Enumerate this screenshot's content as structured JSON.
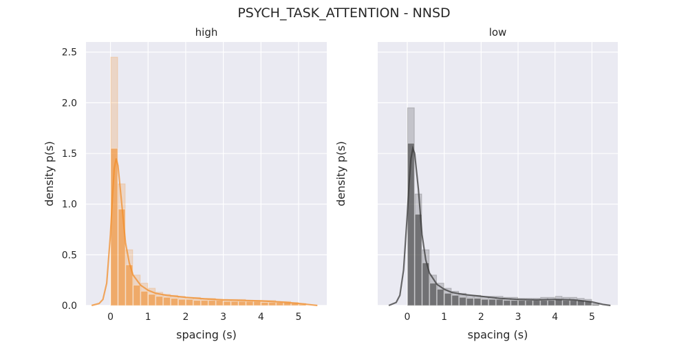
{
  "figure": {
    "title": "PSYCH_TASK_ATTENTION - NNSD"
  },
  "chart_data": [
    {
      "type": "histogram",
      "title": "high",
      "xlabel": "spacing (s)",
      "ylabel": "density p(s)",
      "xlim": [
        -0.65,
        5.75
      ],
      "ylim": [
        0,
        2.6
      ],
      "xticks": [
        "0",
        "1",
        "2",
        "3",
        "4",
        "5"
      ],
      "yticks": [
        "0.0",
        "0.5",
        "1.0",
        "1.5",
        "2.0",
        "2.5"
      ],
      "grid": true,
      "color": "#f28e2b",
      "bin_width": 0.2,
      "bin_starts": [
        0.0,
        0.2,
        0.4,
        0.6,
        0.8,
        1.0,
        1.2,
        1.4,
        1.6,
        1.8,
        2.0,
        2.2,
        2.4,
        2.6,
        2.8,
        3.0,
        3.2,
        3.4,
        3.6,
        3.8,
        4.0,
        4.2,
        4.4,
        4.6,
        4.8,
        5.0
      ],
      "density_max": [
        2.45,
        1.2,
        0.55,
        0.3,
        0.22,
        0.17,
        0.13,
        0.11,
        0.1,
        0.09,
        0.08,
        0.08,
        0.07,
        0.07,
        0.06,
        0.06,
        0.06,
        0.06,
        0.05,
        0.05,
        0.05,
        0.05,
        0.04,
        0.04,
        0.03,
        0.02
      ],
      "density_typical": [
        1.55,
        0.95,
        0.4,
        0.2,
        0.14,
        0.11,
        0.09,
        0.08,
        0.07,
        0.06,
        0.06,
        0.05,
        0.05,
        0.05,
        0.05,
        0.04,
        0.04,
        0.04,
        0.04,
        0.04,
        0.03,
        0.03,
        0.03,
        0.03,
        0.02,
        0.01
      ],
      "kde_x": [
        -0.5,
        -0.3,
        -0.2,
        -0.1,
        0.0,
        0.05,
        0.1,
        0.15,
        0.2,
        0.3,
        0.4,
        0.5,
        0.6,
        0.8,
        1.0,
        1.2,
        1.5,
        2.0,
        2.5,
        3.0,
        3.5,
        4.0,
        4.5,
        5.0,
        5.3,
        5.5
      ],
      "kde_y": [
        0.0,
        0.02,
        0.06,
        0.22,
        0.7,
        1.05,
        1.35,
        1.45,
        1.38,
        1.0,
        0.62,
        0.42,
        0.3,
        0.2,
        0.15,
        0.12,
        0.1,
        0.08,
        0.065,
        0.055,
        0.05,
        0.045,
        0.035,
        0.02,
        0.008,
        0.0
      ]
    },
    {
      "type": "histogram",
      "title": "low",
      "xlabel": "spacing (s)",
      "ylabel": "density p(s)",
      "xlim": [
        -0.8,
        5.7
      ],
      "ylim": [
        0,
        2.6
      ],
      "xticks": [
        "0",
        "1",
        "2",
        "3",
        "4",
        "5"
      ],
      "yticks": [],
      "grid": true,
      "color": "#3a3a3a",
      "bin_width": 0.2,
      "bin_starts": [
        0.0,
        0.2,
        0.4,
        0.6,
        0.8,
        1.0,
        1.2,
        1.4,
        1.6,
        1.8,
        2.0,
        2.2,
        2.4,
        2.6,
        2.8,
        3.0,
        3.2,
        3.4,
        3.6,
        3.8,
        4.0,
        4.2,
        4.4,
        4.6,
        4.8,
        5.0
      ],
      "density_max": [
        1.95,
        1.1,
        0.55,
        0.3,
        0.22,
        0.17,
        0.14,
        0.12,
        0.1,
        0.1,
        0.09,
        0.09,
        0.09,
        0.08,
        0.08,
        0.07,
        0.07,
        0.07,
        0.08,
        0.08,
        0.09,
        0.08,
        0.08,
        0.07,
        0.06,
        0.02
      ],
      "density_typical": [
        1.6,
        0.9,
        0.42,
        0.22,
        0.16,
        0.12,
        0.1,
        0.08,
        0.07,
        0.07,
        0.06,
        0.06,
        0.06,
        0.05,
        0.05,
        0.05,
        0.05,
        0.05,
        0.05,
        0.05,
        0.06,
        0.05,
        0.05,
        0.05,
        0.04,
        0.01
      ],
      "kde_x": [
        -0.5,
        -0.3,
        -0.2,
        -0.1,
        0.0,
        0.05,
        0.1,
        0.15,
        0.2,
        0.3,
        0.4,
        0.5,
        0.6,
        0.8,
        1.0,
        1.2,
        1.5,
        2.0,
        2.5,
        3.0,
        3.5,
        4.0,
        4.5,
        5.0,
        5.3,
        5.5
      ],
      "kde_y": [
        0.0,
        0.03,
        0.1,
        0.35,
        0.9,
        1.2,
        1.45,
        1.55,
        1.5,
        1.15,
        0.7,
        0.45,
        0.32,
        0.21,
        0.16,
        0.13,
        0.11,
        0.09,
        0.07,
        0.06,
        0.055,
        0.06,
        0.055,
        0.035,
        0.01,
        0.0
      ]
    }
  ]
}
